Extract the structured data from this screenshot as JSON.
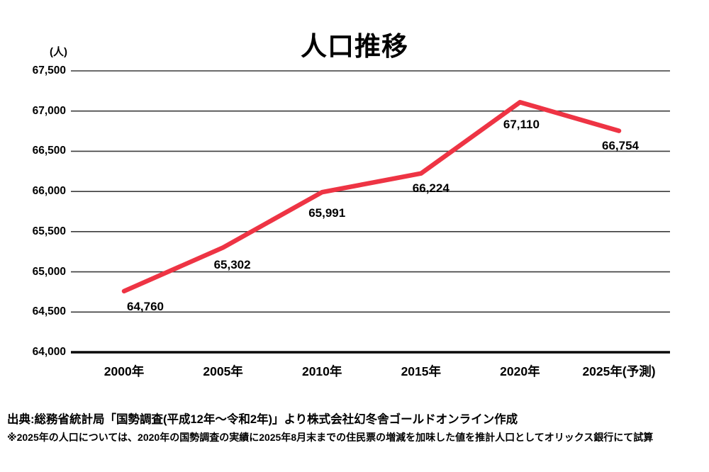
{
  "title": "人口推移",
  "chart_data": {
    "type": "line",
    "title": "人口推移",
    "unit_label": "(人)",
    "categories": [
      "2000年",
      "2005年",
      "2010年",
      "2015年",
      "2020年",
      "2025年(予測)"
    ],
    "values": [
      64760,
      65302,
      65991,
      66224,
      67110,
      66754
    ],
    "value_labels": [
      "64,760",
      "65,302",
      "65,991",
      "66,224",
      "67,110",
      "66,754"
    ],
    "series": [
      {
        "name": "人口",
        "values": [
          64760,
          65302,
          65991,
          66224,
          67110,
          66754
        ]
      }
    ],
    "ylim": [
      64000,
      67500
    ],
    "ytick_step": 500,
    "yticks": [
      {
        "value": 64000,
        "label": "64,000"
      },
      {
        "value": 64500,
        "label": "64,500"
      },
      {
        "value": 65000,
        "label": "65,000"
      },
      {
        "value": 65500,
        "label": "65,500"
      },
      {
        "value": 66000,
        "label": "66,000"
      },
      {
        "value": 66500,
        "label": "66,500"
      },
      {
        "value": 67000,
        "label": "67,000"
      },
      {
        "value": 67500,
        "label": "67,500"
      }
    ],
    "grid": true,
    "legend": "none",
    "line_color": "#ee3444",
    "grid_color": "#3c3c3c",
    "axis_color": "#0a0a0a",
    "label_color": "#000000"
  },
  "footer": {
    "source": "出典:総務省統計局「国勢調査(平成12年〜令和2年)」より株式会社幻冬舎ゴールドオンライン作成",
    "note": "※2025年の人口については、2020年の国勢調査の実績に2025年8月末までの住民票の増減を加味した値を推計人口としてオリックス銀行にて試算"
  }
}
